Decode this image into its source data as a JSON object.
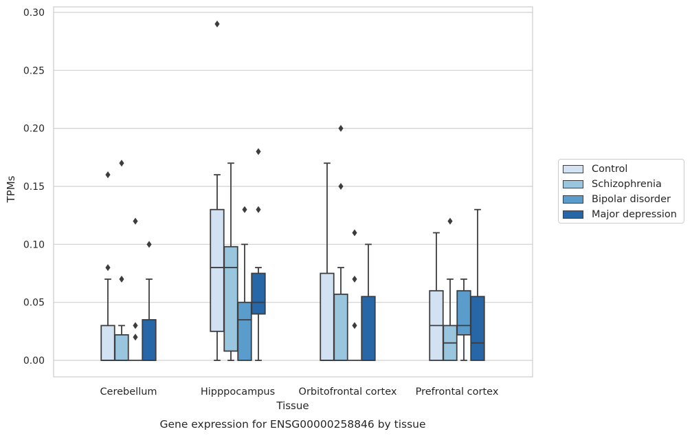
{
  "chart_data": {
    "type": "box",
    "title": "Gene expression for ENSG00000258846 by tissue",
    "xlabel": "Tissue",
    "ylabel": "TPMs",
    "ylim": [
      -0.014,
      0.304
    ],
    "yticks": [
      "0.00",
      "0.05",
      "0.10",
      "0.15",
      "0.20",
      "0.25",
      "0.30"
    ],
    "grid": "horizontal",
    "legend_position": "right",
    "categories": [
      "Cerebellum",
      "Hipppocampus",
      "Orbitofrontal cortex",
      "Prefrontal cortex"
    ],
    "series": [
      {
        "name": "Control",
        "color": "#d2e2f3",
        "boxes": [
          {
            "q1": 0.0,
            "median": 0.0,
            "q3": 0.03,
            "whislo": 0.0,
            "whishi": 0.07,
            "fliers": [
              0.08,
              0.16
            ]
          },
          {
            "q1": 0.025,
            "median": 0.08,
            "q3": 0.13,
            "whislo": 0.0,
            "whishi": 0.16,
            "fliers": [
              0.29
            ]
          },
          {
            "q1": 0.0,
            "median": 0.0,
            "q3": 0.075,
            "whislo": 0.0,
            "whishi": 0.17,
            "fliers": []
          },
          {
            "q1": 0.0,
            "median": 0.03,
            "q3": 0.06,
            "whislo": 0.0,
            "whishi": 0.11,
            "fliers": []
          }
        ]
      },
      {
        "name": "Schizophrenia",
        "color": "#9ac5df",
        "boxes": [
          {
            "q1": 0.0,
            "median": 0.0,
            "q3": 0.022,
            "whislo": 0.0,
            "whishi": 0.03,
            "fliers": [
              0.07,
              0.17
            ]
          },
          {
            "q1": 0.008,
            "median": 0.08,
            "q3": 0.098,
            "whislo": 0.0,
            "whishi": 0.17,
            "fliers": []
          },
          {
            "q1": 0.0,
            "median": 0.0,
            "q3": 0.057,
            "whislo": 0.0,
            "whishi": 0.08,
            "fliers": [
              0.15,
              0.2
            ]
          },
          {
            "q1": 0.0,
            "median": 0.015,
            "q3": 0.03,
            "whislo": 0.0,
            "whishi": 0.07,
            "fliers": [
              0.12
            ]
          }
        ]
      },
      {
        "name": "Bipolar disorder",
        "color": "#5a9ccb",
        "boxes": [
          {
            "q1": 0.0,
            "median": 0.0,
            "q3": 0.0,
            "whislo": 0.0,
            "whishi": 0.0,
            "fliers": [
              0.02,
              0.03,
              0.12
            ]
          },
          {
            "q1": 0.0,
            "median": 0.035,
            "q3": 0.05,
            "whislo": 0.0,
            "whishi": 0.1,
            "fliers": [
              0.13
            ]
          },
          {
            "q1": 0.0,
            "median": 0.0,
            "q3": 0.0,
            "whislo": 0.0,
            "whishi": 0.0,
            "fliers": [
              0.03,
              0.07,
              0.11
            ]
          },
          {
            "q1": 0.022,
            "median": 0.03,
            "q3": 0.06,
            "whislo": 0.0,
            "whishi": 0.07,
            "fliers": []
          }
        ]
      },
      {
        "name": "Major depression",
        "color": "#2767a8",
        "boxes": [
          {
            "q1": 0.0,
            "median": 0.0,
            "q3": 0.035,
            "whislo": 0.0,
            "whishi": 0.07,
            "fliers": [
              0.1
            ]
          },
          {
            "q1": 0.04,
            "median": 0.05,
            "q3": 0.075,
            "whislo": 0.0,
            "whishi": 0.08,
            "fliers": [
              0.13,
              0.18
            ]
          },
          {
            "q1": 0.0,
            "median": 0.0,
            "q3": 0.055,
            "whislo": 0.0,
            "whishi": 0.1,
            "fliers": []
          },
          {
            "q1": 0.0,
            "median": 0.015,
            "q3": 0.055,
            "whislo": 0.0,
            "whishi": 0.13,
            "fliers": []
          }
        ]
      }
    ]
  }
}
